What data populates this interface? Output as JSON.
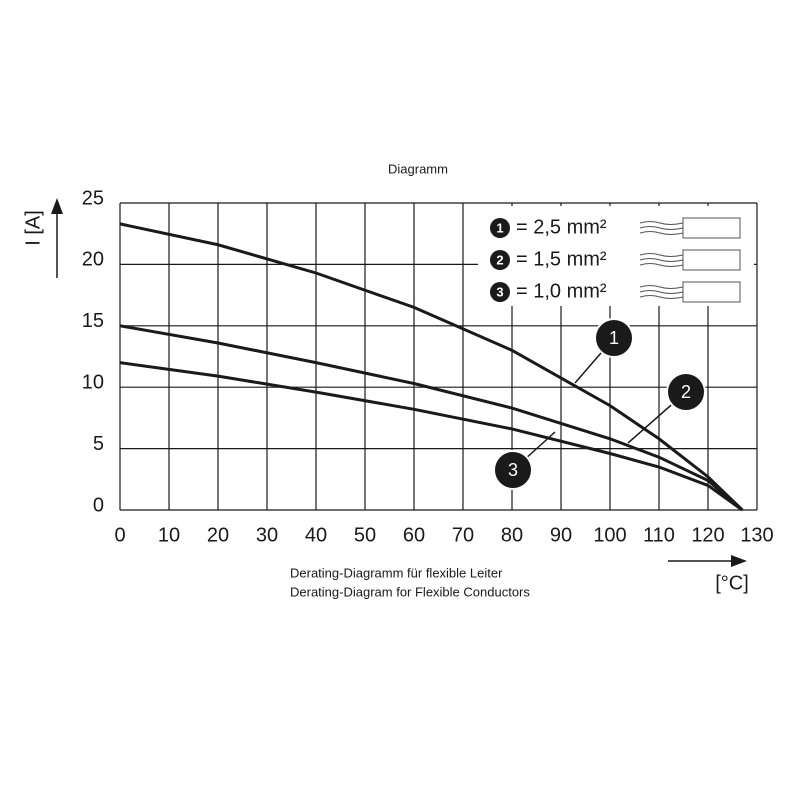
{
  "chart_data": {
    "type": "line",
    "title": "Diagramm",
    "caption": [
      "Derating-Diagramm für flexible Leiter",
      "Derating-Diagram for Flexible Conductors"
    ],
    "y_label": "I [A]",
    "x_label": "[°C]",
    "x": [
      0,
      20,
      40,
      60,
      80,
      100,
      110,
      120,
      127
    ],
    "series": [
      {
        "name": "= 2,5 mm²",
        "marker": "1",
        "color": "#1a1a1a",
        "values": [
          23.3,
          21.6,
          19.3,
          16.5,
          13,
          8.5,
          5.8,
          2.7,
          0
        ]
      },
      {
        "name": "= 1,5 mm²",
        "marker": "2",
        "color": "#1a1a1a",
        "values": [
          15,
          13.6,
          12,
          10.3,
          8.3,
          5.8,
          4.3,
          2.4,
          0
        ]
      },
      {
        "name": "= 1,0 mm²",
        "marker": "3",
        "color": "#1a1a1a",
        "values": [
          12,
          10.9,
          9.6,
          8.2,
          6.6,
          4.6,
          3.5,
          2,
          0
        ]
      }
    ],
    "xlim": [
      0,
      130
    ],
    "xticks": [
      0,
      10,
      20,
      30,
      40,
      50,
      60,
      70,
      80,
      90,
      100,
      110,
      120,
      130
    ],
    "ylim": [
      0,
      25
    ],
    "yticks": [
      0,
      5,
      10,
      15,
      20,
      25
    ],
    "grid": true
  }
}
